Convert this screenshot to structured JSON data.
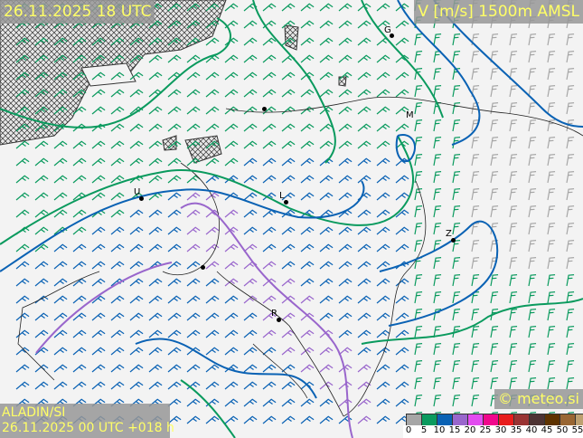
{
  "header": {
    "valid_time": "26.11.2025 18 UTC",
    "field": "V [m/s] 1500m AMSL"
  },
  "footer": {
    "model": "ALADIN/SI",
    "run": "26.11.2025 00 UTC +018 h",
    "credit": "© meteo.si"
  },
  "legend": {
    "labels": [
      "0",
      "5",
      "10",
      "15",
      "20",
      "25",
      "30",
      "35",
      "40",
      "45",
      "50",
      "55"
    ],
    "colors": [
      "#a6a6a6",
      "#0a9a5e",
      "#0a62b4",
      "#9966cc",
      "#e24cf0",
      "#f0078c",
      "#e81c1c",
      "#993333",
      "#4d3333",
      "#5e3300",
      "#996633",
      "#bda070"
    ]
  },
  "cities": [
    {
      "label": "G"
    },
    {
      "label": "M"
    },
    {
      "label": "U"
    },
    {
      "label": "L"
    },
    {
      "label": "Z"
    },
    {
      "label": "R"
    }
  ]
}
